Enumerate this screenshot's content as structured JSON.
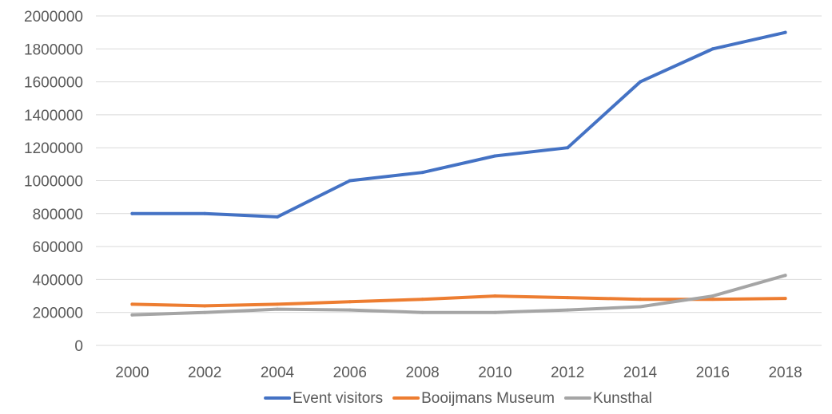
{
  "chart_data": {
    "type": "line",
    "title": "",
    "xlabel": "",
    "ylabel": "",
    "x": [
      "2000",
      "2002",
      "2004",
      "2006",
      "2008",
      "2010",
      "2012",
      "2014",
      "2016",
      "2018"
    ],
    "ylim": [
      0,
      2000000
    ],
    "yticks": [
      "0",
      "200000",
      "400000",
      "600000",
      "800000",
      "1000000",
      "1200000",
      "1400000",
      "1600000",
      "1800000",
      "2000000"
    ],
    "grid": true,
    "legend_position": "bottom",
    "series": [
      {
        "name": "Event visitors",
        "color": "#4472C4",
        "values": [
          800000,
          800000,
          780000,
          1000000,
          1050000,
          1150000,
          1200000,
          1600000,
          1800000,
          1900000
        ]
      },
      {
        "name": "Booijmans Museum",
        "color": "#ED7D31",
        "values": [
          250000,
          240000,
          250000,
          265000,
          280000,
          300000,
          290000,
          280000,
          280000,
          285000
        ]
      },
      {
        "name": "Kunsthal",
        "color": "#A5A5A5",
        "values": [
          185000,
          200000,
          220000,
          215000,
          200000,
          200000,
          215000,
          235000,
          300000,
          425000
        ]
      }
    ]
  }
}
